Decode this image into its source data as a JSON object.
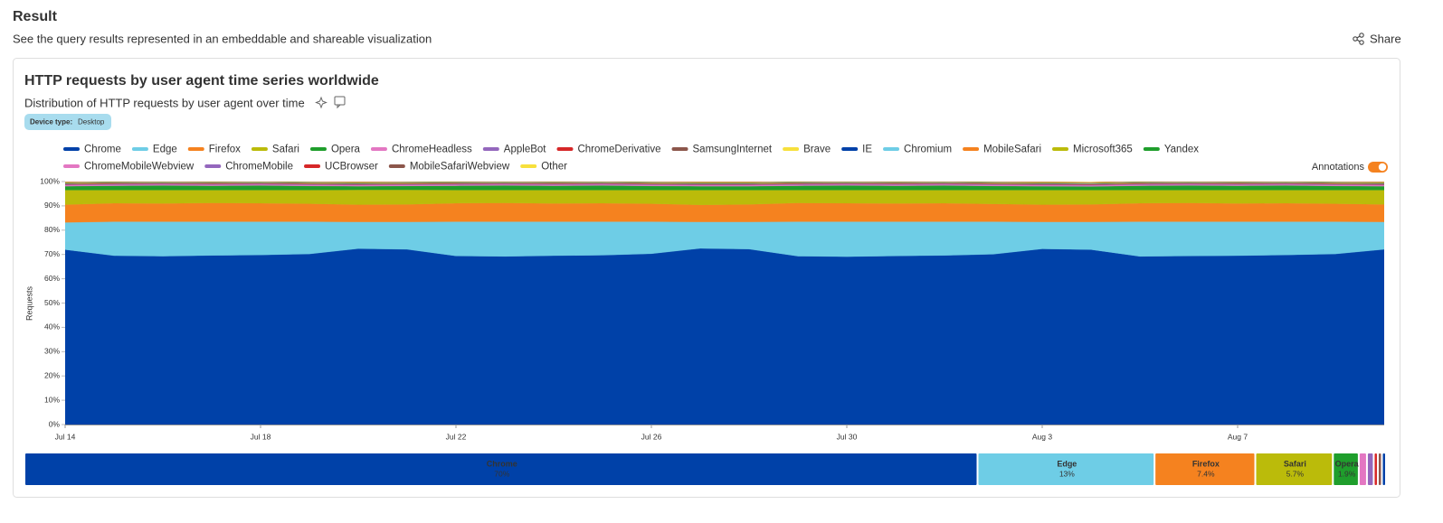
{
  "page": {
    "heading": "Result",
    "subheading": "See the query results represented in an embeddable and shareable visualization",
    "share": "Share",
    "tag_key": "Device type:",
    "tag_value": "Desktop",
    "annotations": "Annotations"
  },
  "chart_data": [
    {
      "type": "stacked-area",
      "title": "HTTP requests by user agent time series worldwide",
      "subtitle": "Distribution of HTTP requests by user agent over time",
      "y_label": "Requests",
      "categories": [
        "Jul 14",
        null,
        null,
        null,
        "Jul 18",
        null,
        null,
        null,
        "Jul 22",
        null,
        null,
        null,
        "Jul 26",
        null,
        null,
        null,
        "Jul 30",
        null,
        null,
        null,
        "Aug 3",
        null,
        null,
        null,
        "Aug 7",
        null,
        null,
        null
      ],
      "ylim": [
        0,
        100
      ],
      "yticks": [
        {
          "value": 0,
          "label": "0%"
        },
        {
          "value": 10,
          "label": "10%"
        },
        {
          "value": 20,
          "label": "20%"
        },
        {
          "value": 30,
          "label": "30%"
        },
        {
          "value": 40,
          "label": "40%"
        },
        {
          "value": 50,
          "label": "50%"
        },
        {
          "value": 60,
          "label": "60%"
        },
        {
          "value": 70,
          "label": "70%"
        },
        {
          "value": 80,
          "label": "80%"
        },
        {
          "value": 90,
          "label": "90%"
        },
        {
          "value": 100,
          "label": "100%"
        }
      ],
      "series": [
        {
          "name": "Chrome",
          "color": "#0041a8",
          "values": [
            72,
            69.5,
            69.3,
            69.6,
            69.8,
            70.2,
            72.4,
            72.1,
            69.4,
            69.2,
            69.5,
            69.7,
            70.3,
            72.5,
            72.2,
            69.3,
            69.1,
            69.4,
            69.6,
            70.1,
            72.3,
            72,
            69.2,
            69.4,
            69.5,
            69.8,
            70.2,
            72.1
          ]
        },
        {
          "name": "Edge",
          "color": "#6ecde6",
          "values": [
            11.2,
            14,
            14.2,
            13.9,
            13.7,
            13.3,
            11,
            11.3,
            14.1,
            14.3,
            14,
            13.8,
            13.2,
            10.9,
            11.2,
            14.2,
            14.4,
            14.1,
            13.9,
            13.4,
            11.1,
            11.4,
            14.3,
            14.1,
            14,
            13.7,
            13.3,
            11.3
          ]
        },
        {
          "name": "Firefox",
          "color": "#f5821f",
          "values": [
            7.3,
            7.6,
            7.5,
            7.7,
            7.6,
            7.4,
            7.1,
            7.2,
            7.6,
            7.7,
            7.5,
            7.6,
            7.4,
            7.0,
            7.2,
            7.7,
            7.6,
            7.5,
            7.6,
            7.3,
            7.1,
            7.2,
            7.6,
            7.7,
            7.5,
            7.6,
            7.4,
            7.2
          ]
        },
        {
          "name": "Safari",
          "color": "#bbbb0a",
          "values": [
            6.0,
            5.4,
            5.5,
            5.3,
            5.4,
            5.6,
            6.1,
            6.0,
            5.4,
            5.3,
            5.5,
            5.4,
            5.6,
            6.1,
            5.9,
            5.3,
            5.4,
            5.5,
            5.4,
            5.7,
            6.0,
            5.9,
            5.4,
            5.3,
            5.5,
            5.4,
            5.6,
            5.9
          ]
        },
        {
          "name": "Opera",
          "color": "#1f9e2c",
          "values": [
            1.6,
            1.8,
            1.9,
            1.8,
            1.9,
            1.7,
            1.5,
            1.6,
            1.8,
            1.9,
            1.8,
            1.9,
            1.7,
            1.6,
            1.6,
            1.8,
            1.9,
            1.8,
            1.9,
            1.7,
            1.6,
            1.5,
            1.8,
            1.9,
            1.8,
            1.9,
            1.7,
            1.6
          ]
        },
        {
          "name": "ChromeHeadless",
          "color": "#e377c2",
          "values": [
            0.4,
            0.4,
            0.4,
            0.4,
            0.4,
            0.4,
            0.4,
            0.4,
            0.4,
            0.4,
            0.4,
            0.4,
            0.4,
            0.4,
            0.4,
            0.4,
            0.4,
            0.4,
            0.4,
            0.4,
            0.4,
            0.4,
            0.4,
            0.4,
            0.4,
            0.4,
            0.4,
            0.4
          ]
        },
        {
          "name": "AppleBot",
          "color": "#9467bd",
          "values": [
            0.3,
            0.3,
            0.3,
            0.3,
            0.3,
            0.3,
            0.3,
            0.3,
            0.3,
            0.3,
            0.3,
            0.3,
            0.3,
            0.3,
            0.3,
            0.3,
            0.3,
            0.3,
            0.3,
            0.3,
            0.3,
            0.3,
            0.3,
            0.3,
            0.3,
            0.3,
            0.3,
            0.3
          ]
        },
        {
          "name": "ChromeDerivative",
          "color": "#d62728",
          "values": [
            0.2,
            0.2,
            0.2,
            0.2,
            0.2,
            0.2,
            0.2,
            0.2,
            0.2,
            0.2,
            0.2,
            0.2,
            0.2,
            0.2,
            0.2,
            0.2,
            0.2,
            0.2,
            0.2,
            0.2,
            0.2,
            0.2,
            0.2,
            0.2,
            0.2,
            0.2,
            0.2,
            0.2
          ]
        },
        {
          "name": "SamsungInternet",
          "color": "#8c564b",
          "values": [
            0.1,
            0.1,
            0.1,
            0.1,
            0.1,
            0.1,
            0.1,
            0.1,
            0.1,
            0.1,
            0.1,
            0.1,
            0.1,
            0.1,
            0.1,
            0.1,
            0.1,
            0.1,
            0.1,
            0.1,
            0.1,
            0.1,
            0.1,
            0.1,
            0.1,
            0.1,
            0.1,
            0.1
          ]
        },
        {
          "name": "Brave",
          "color": "#f7e03c",
          "values": [
            0.1,
            0.1,
            0.1,
            0.1,
            0.1,
            0.1,
            0.1,
            0.1,
            0.1,
            0.1,
            0.1,
            0.1,
            0.1,
            0.1,
            0.1,
            0.1,
            0.1,
            0.1,
            0.1,
            0.1,
            0.1,
            0.1,
            0.1,
            0.1,
            0.1,
            0.1,
            0.1,
            0.1
          ]
        },
        {
          "name": "IE",
          "color": "#0041a8",
          "values": [
            0.1,
            0.1,
            0.1,
            0.1,
            0.1,
            0.1,
            0.1,
            0.1,
            0.1,
            0.1,
            0.1,
            0.1,
            0.1,
            0.1,
            0.1,
            0.1,
            0.1,
            0.1,
            0.1,
            0.1,
            0.1,
            0.1,
            0.1,
            0.1,
            0.1,
            0.1,
            0.1,
            0.1
          ]
        },
        {
          "name": "Chromium",
          "color": "#6ecde6",
          "values": [
            0.1,
            0.1,
            0.1,
            0.1,
            0.1,
            0.1,
            0.1,
            0.1,
            0.1,
            0.1,
            0.1,
            0.1,
            0.1,
            0.1,
            0.1,
            0.1,
            0.1,
            0.1,
            0.1,
            0.1,
            0.1,
            0.1,
            0.1,
            0.1,
            0.1,
            0.1,
            0.1,
            0.1
          ]
        },
        {
          "name": "MobileSafari",
          "color": "#f5821f",
          "values": [
            0.1,
            0.1,
            0.1,
            0.1,
            0.1,
            0.1,
            0.1,
            0.1,
            0.1,
            0.1,
            0.1,
            0.1,
            0.1,
            0.1,
            0.1,
            0.1,
            0.1,
            0.1,
            0.1,
            0.1,
            0.1,
            0.1,
            0.1,
            0.1,
            0.1,
            0.1,
            0.1,
            0.1
          ]
        },
        {
          "name": "Microsoft365",
          "color": "#bbbb0a",
          "values": [
            0.1,
            0.1,
            0.1,
            0.1,
            0.1,
            0.1,
            0.1,
            0.1,
            0.1,
            0.1,
            0.1,
            0.1,
            0.1,
            0.1,
            0.1,
            0.1,
            0.1,
            0.1,
            0.1,
            0.1,
            0.1,
            0.1,
            0.1,
            0.1,
            0.1,
            0.1,
            0.1,
            0.1
          ]
        },
        {
          "name": "Yandex",
          "color": "#1f9e2c",
          "values": [
            0.1,
            0.1,
            0.1,
            0.1,
            0.1,
            0.1,
            0.1,
            0.1,
            0.1,
            0.1,
            0.1,
            0.1,
            0.1,
            0.1,
            0.1,
            0.1,
            0.1,
            0.1,
            0.1,
            0.1,
            0.1,
            0.1,
            0.1,
            0.1,
            0.1,
            0.1,
            0.1,
            0.1
          ]
        },
        {
          "name": "ChromeMobileWebview",
          "color": "#e377c2",
          "values": [
            0.05,
            0.05,
            0.05,
            0.05,
            0.05,
            0.05,
            0.05,
            0.05,
            0.05,
            0.05,
            0.05,
            0.05,
            0.05,
            0.05,
            0.05,
            0.05,
            0.05,
            0.05,
            0.05,
            0.05,
            0.05,
            0.05,
            0.05,
            0.05,
            0.05,
            0.05,
            0.05,
            0.05
          ]
        },
        {
          "name": "ChromeMobile",
          "color": "#9467bd",
          "values": [
            0.05,
            0.05,
            0.05,
            0.05,
            0.05,
            0.05,
            0.05,
            0.05,
            0.05,
            0.05,
            0.05,
            0.05,
            0.05,
            0.05,
            0.05,
            0.05,
            0.05,
            0.05,
            0.05,
            0.05,
            0.05,
            0.05,
            0.05,
            0.05,
            0.05,
            0.05,
            0.05,
            0.05
          ]
        },
        {
          "name": "UCBrowser",
          "color": "#d62728",
          "values": [
            0.02,
            0.02,
            0.02,
            0.02,
            0.02,
            0.02,
            0.02,
            0.02,
            0.02,
            0.02,
            0.02,
            0.02,
            0.02,
            0.02,
            0.02,
            0.02,
            0.02,
            0.02,
            0.02,
            0.02,
            0.02,
            0.02,
            0.02,
            0.02,
            0.02,
            0.02,
            0.02,
            0.02
          ]
        },
        {
          "name": "MobileSafariWebview",
          "color": "#8c564b",
          "values": [
            0.02,
            0.02,
            0.02,
            0.02,
            0.02,
            0.02,
            0.02,
            0.02,
            0.02,
            0.02,
            0.02,
            0.02,
            0.02,
            0.02,
            0.02,
            0.02,
            0.02,
            0.02,
            0.02,
            0.02,
            0.02,
            0.02,
            0.02,
            0.02,
            0.02,
            0.02,
            0.02,
            0.02
          ]
        },
        {
          "name": "Other",
          "color": "#f7e03c",
          "values": [
            0.01,
            0.01,
            0.01,
            0.01,
            0.01,
            0.01,
            0.01,
            0.01,
            0.01,
            0.01,
            0.01,
            0.01,
            0.01,
            0.01,
            0.01,
            0.01,
            0.01,
            0.01,
            0.01,
            0.01,
            0.01,
            0.01,
            0.01,
            0.01,
            0.01,
            0.01,
            0.01,
            0.01
          ]
        }
      ]
    },
    {
      "type": "stacked-bar",
      "xlim": [
        0,
        100
      ],
      "categories": [
        "Chrome",
        "Edge",
        "Firefox",
        "Safari",
        "Opera",
        null,
        null,
        null,
        null,
        null
      ],
      "values": [
        70,
        13,
        7.4,
        5.7,
        1.9,
        0.6,
        0.5,
        0.3,
        0.3,
        0.3
      ],
      "value_labels": [
        "70%",
        "13%",
        "7.4%",
        "5.7%",
        "1.9%",
        null,
        null,
        null,
        null,
        null
      ],
      "colors": [
        "#0041a8",
        "#6ecde6",
        "#f5821f",
        "#bbbb0a",
        "#1f9e2c",
        "#e377c2",
        "#9467bd",
        "#d62728",
        "#8c564b",
        "#0041a8"
      ]
    }
  ]
}
